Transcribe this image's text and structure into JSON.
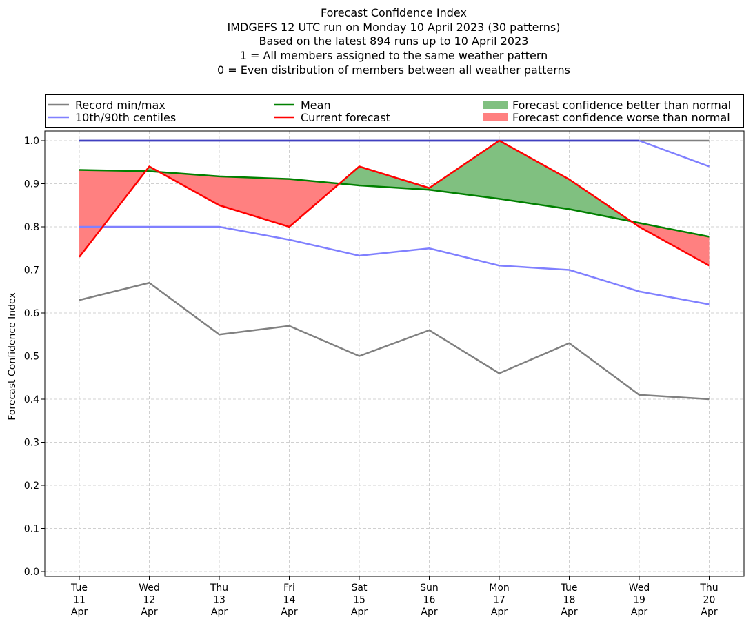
{
  "chart_data": {
    "type": "line",
    "title_lines": [
      "Forecast Confidence Index",
      "IMDGEFS 12 UTC run on Monday 10 April 2023 (30 patterns)",
      "Based on the latest 894 runs up to 10 April 2023",
      "1 = All members assigned to the same weather pattern",
      "0 = Even distribution of members between all weather patterns"
    ],
    "ylabel": "Forecast Confidence Index",
    "xlabel": "",
    "ylim": [
      0.0,
      1.0
    ],
    "yticks": [
      "0.0",
      "0.1",
      "0.2",
      "0.3",
      "0.4",
      "0.5",
      "0.6",
      "0.7",
      "0.8",
      "0.9",
      "1.0"
    ],
    "categories": [
      [
        "Tue",
        "11",
        "Apr"
      ],
      [
        "Wed",
        "12",
        "Apr"
      ],
      [
        "Thu",
        "13",
        "Apr"
      ],
      [
        "Fri",
        "14",
        "Apr"
      ],
      [
        "Sat",
        "15",
        "Apr"
      ],
      [
        "Sun",
        "16",
        "Apr"
      ],
      [
        "Mon",
        "17",
        "Apr"
      ],
      [
        "Tue",
        "18",
        "Apr"
      ],
      [
        "Wed",
        "19",
        "Apr"
      ],
      [
        "Thu",
        "20",
        "Apr"
      ]
    ],
    "grid": true,
    "legend_position": "top",
    "series": {
      "record_min": [
        0.63,
        0.67,
        0.55,
        0.57,
        0.5,
        0.56,
        0.46,
        0.53,
        0.41,
        0.4
      ],
      "record_max": [
        1.0,
        1.0,
        1.0,
        1.0,
        1.0,
        1.0,
        1.0,
        1.0,
        1.0,
        1.0
      ],
      "centile_10": [
        0.8,
        0.8,
        0.8,
        0.77,
        0.733,
        0.75,
        0.71,
        0.7,
        0.65,
        0.62
      ],
      "centile_90": [
        1.0,
        1.0,
        1.0,
        1.0,
        1.0,
        1.0,
        1.0,
        1.0,
        1.0,
        0.94
      ],
      "mean": [
        0.932,
        0.929,
        0.917,
        0.911,
        0.896,
        0.886,
        0.865,
        0.841,
        0.809,
        0.777
      ],
      "current_forecast": [
        0.73,
        0.94,
        0.85,
        0.8,
        0.94,
        0.89,
        1.0,
        0.91,
        0.8,
        0.71
      ]
    },
    "legend": [
      {
        "label": "Record min/max",
        "color": "#808080",
        "kind": "line"
      },
      {
        "label": "10th/90th centiles",
        "color": "#8080ff",
        "kind": "line"
      },
      {
        "label": "Mean",
        "color": "#008000",
        "kind": "line"
      },
      {
        "label": "Current forecast",
        "color": "#ff0000",
        "kind": "line"
      },
      {
        "label": "Forecast confidence better than normal",
        "color": "#80c080",
        "kind": "patch"
      },
      {
        "label": "Forecast confidence worse than normal",
        "color": "#ff8080",
        "kind": "patch"
      }
    ],
    "colors": {
      "record": "#808080",
      "centile": "#8080ff",
      "centile_overlap": "#4040c0",
      "mean": "#008000",
      "forecast": "#ff0000",
      "better_fill": "#80c080",
      "worse_fill": "#ff8080",
      "grid": "#d0d0d0"
    }
  }
}
